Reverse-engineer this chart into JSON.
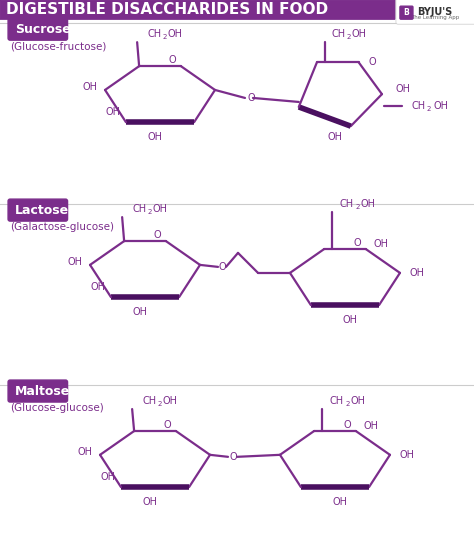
{
  "title": "DIGESTIBLE DISACCHARIDES IN FOOD",
  "title_bg": "#7B2D8B",
  "title_color": "#FFFFFF",
  "bg_color": "#FFFFFF",
  "purple": "#7B2D8B",
  "dark_purple": "#4A1060",
  "line_color": "#7B2D8B",
  "divider_color": "#CCCCCC",
  "sections": [
    {
      "label": "Sucrose",
      "subtitle": "(Glucose-fructose)"
    },
    {
      "label": "Lactose",
      "subtitle": "(Galactose-glucose)"
    },
    {
      "label": "Maltose",
      "subtitle": "(Glucose-glucose)"
    }
  ],
  "figsize": [
    4.74,
    5.49
  ],
  "dpi": 100
}
